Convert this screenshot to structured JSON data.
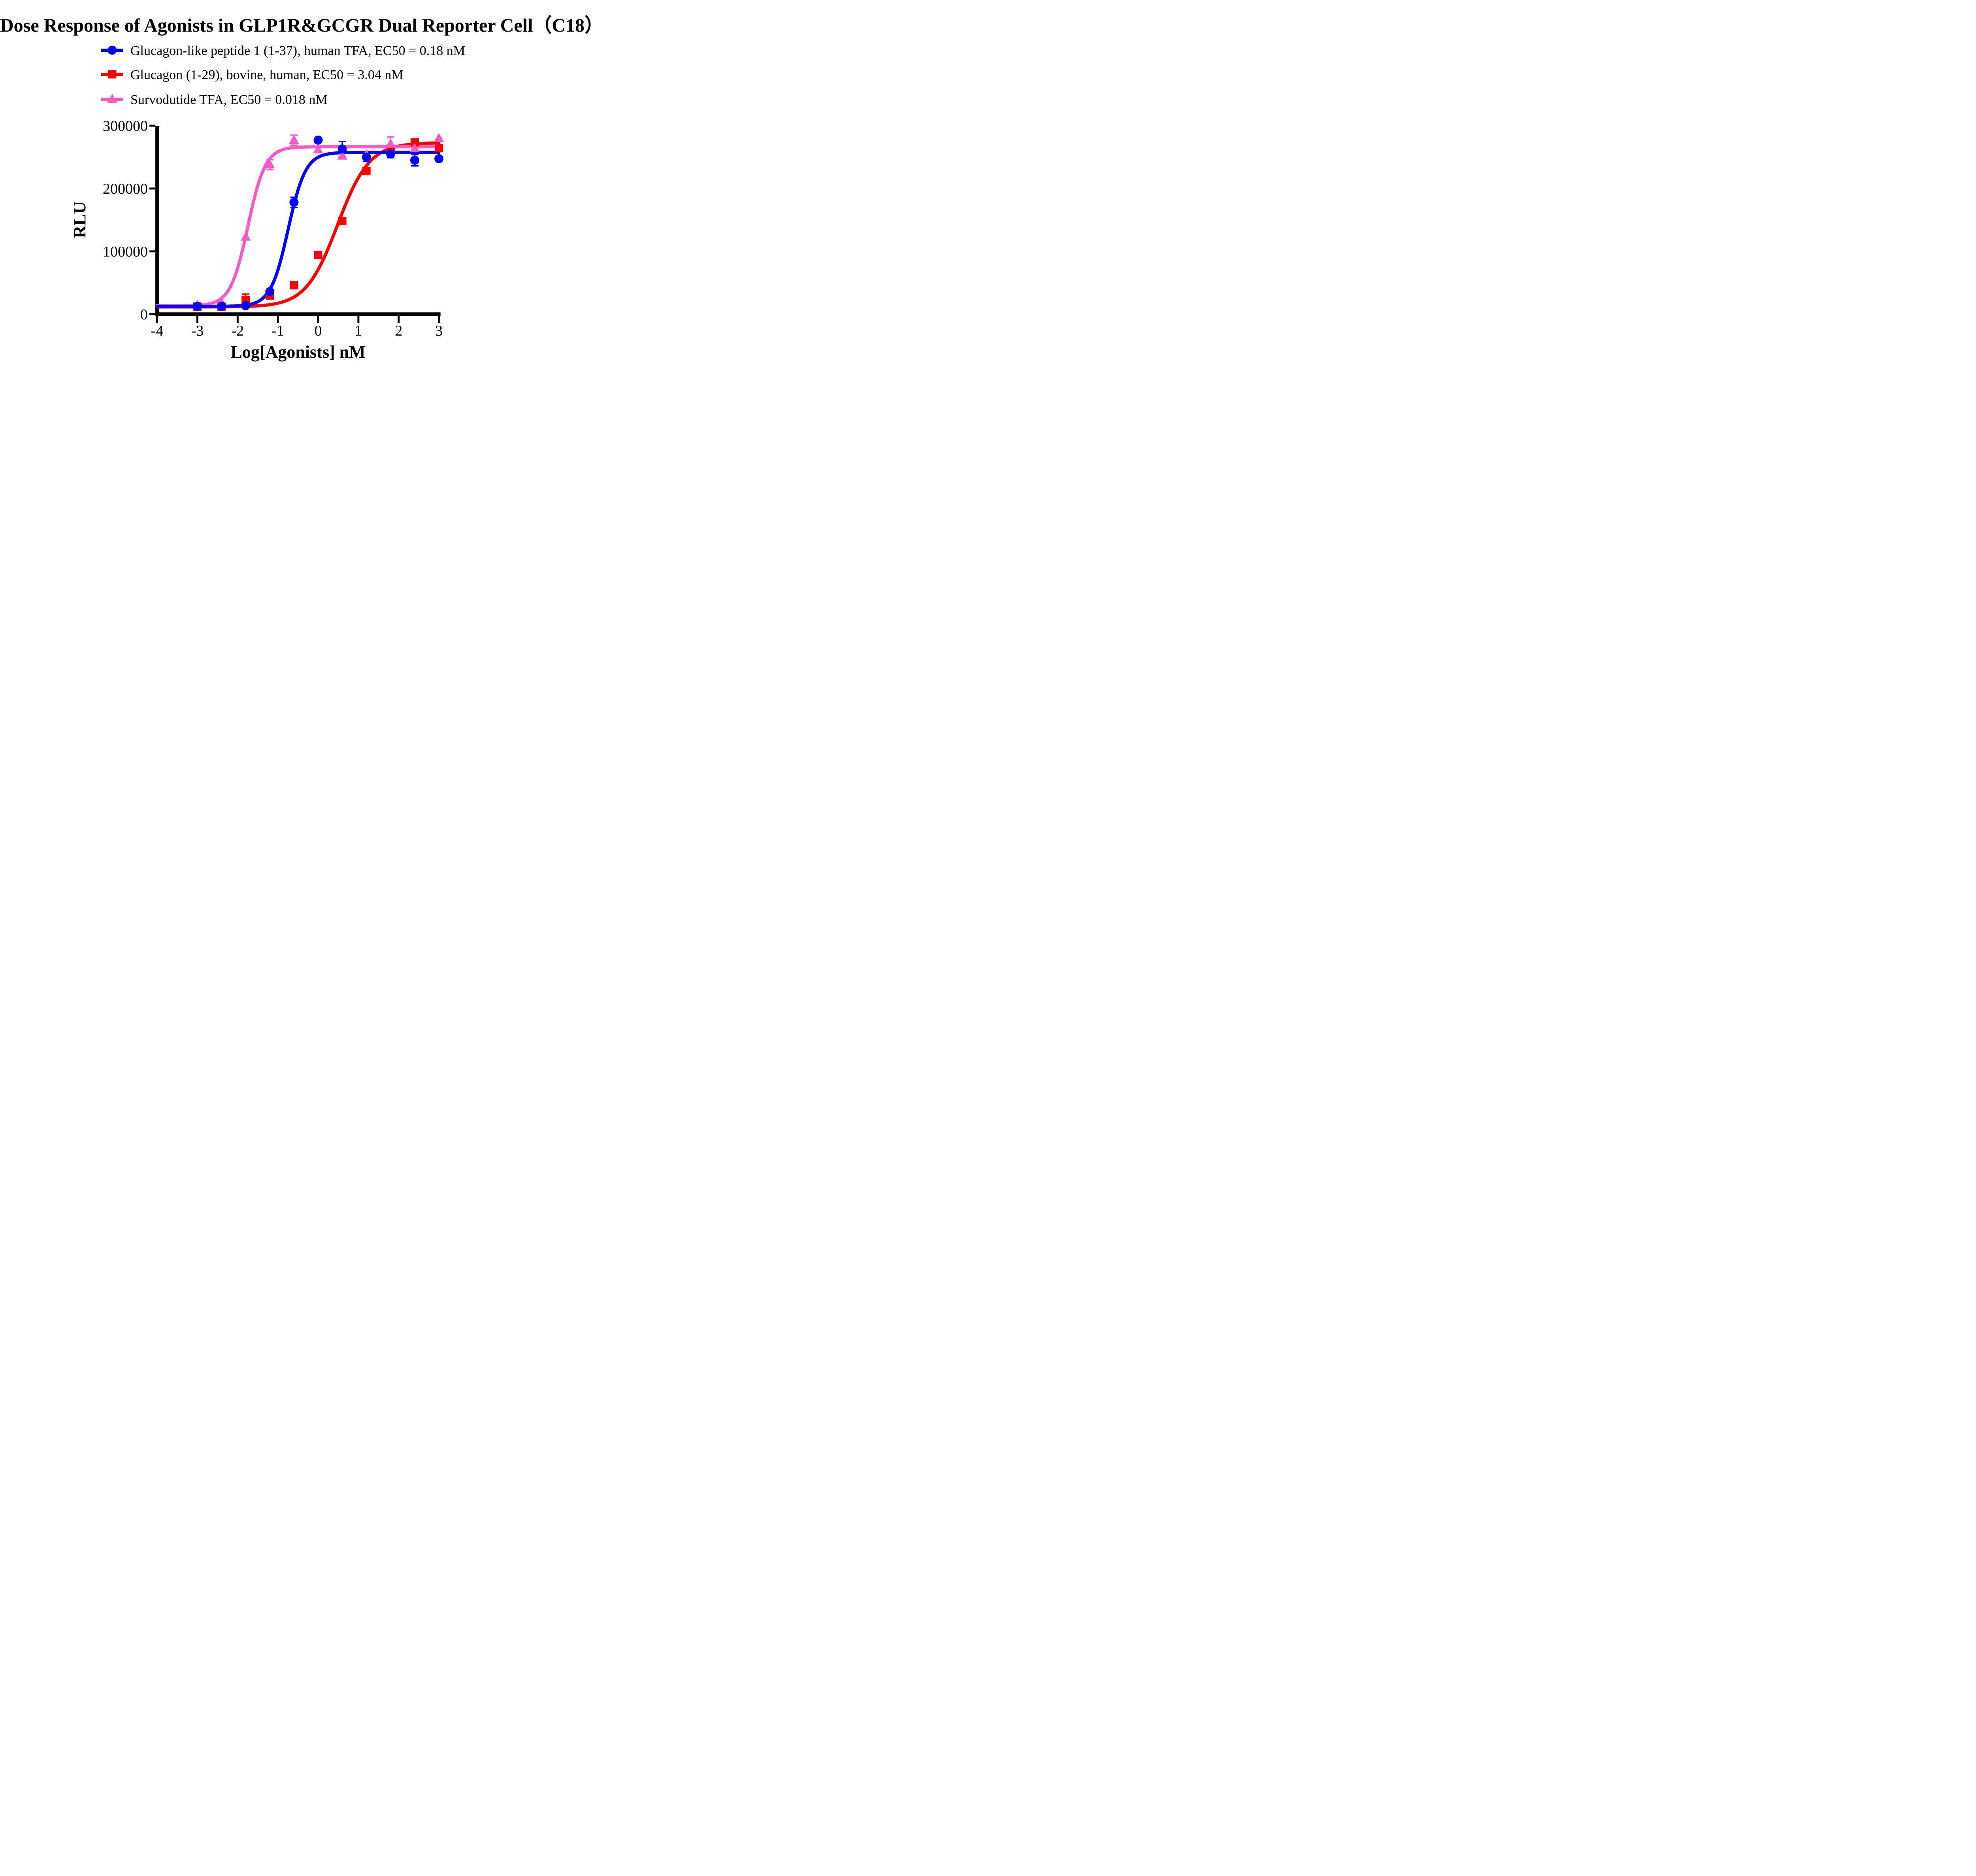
{
  "title": "Dose Response of Agonists in GLP1R&GCGR Dual Reporter Cell（C18）",
  "legend": [
    {
      "label": "Glucagon-like peptide 1 (1-37), human TFA, EC50 = 0.18 nM"
    },
    {
      "label": "Glucagon (1-29), bovine, human, EC50 = 3.04 nM"
    },
    {
      "label": "Survodutide TFA, EC50 = 0.018 nM"
    }
  ],
  "chart_data": {
    "type": "scatter",
    "title": "Dose Response of Agonists in GLP1R&GCGR Dual Reporter Cell（C18）",
    "xlabel": "Log[Agonists] nM",
    "ylabel": "RLU",
    "xlim": [
      -4,
      3
    ],
    "ylim": [
      0,
      300000
    ],
    "xticks": [
      -4,
      -3,
      -2,
      -1,
      0,
      1,
      2,
      3
    ],
    "xtick_labels": [
      "-4",
      "-3",
      "-2",
      "-1",
      "0",
      "1",
      "2",
      "3"
    ],
    "yticks": [
      0,
      100000,
      200000,
      300000
    ],
    "ytick_labels": [
      "0",
      "100000",
      "200000",
      "300000"
    ],
    "grid": false,
    "legend_position": "top-left",
    "series": [
      {
        "name": "Glucagon-like peptide 1 (1-37), human TFA",
        "ec50_label": "EC50 = 0.18 nM",
        "color": "#0000FE",
        "marker": "circle",
        "x": [
          -3,
          -2.4,
          -1.8,
          -1.2,
          -0.6,
          0,
          0.6,
          1.2,
          1.8,
          2.4,
          3
        ],
        "y": [
          12500,
          12500,
          13500,
          36000,
          178000,
          277000,
          263000,
          250000,
          255000,
          245000,
          247500
        ],
        "yerr": [
          0,
          0,
          0,
          0,
          8000,
          0,
          12000,
          7000,
          6000,
          9000,
          0
        ],
        "fit": {
          "model": "sigmoid",
          "bottom": 12500,
          "top": 257500,
          "logec50": -0.745,
          "hill": 2.0
        }
      },
      {
        "name": "Glucagon (1-29), bovine, human",
        "ec50_label": "EC50 = 3.04 nM",
        "color": "#FB0000",
        "marker": "square",
        "x": [
          -3,
          -2.4,
          -1.8,
          -1.2,
          -0.6,
          0,
          0.6,
          1.2,
          1.8,
          2.4,
          3
        ],
        "y": [
          12000,
          12000,
          22500,
          29500,
          46000,
          94000,
          148000,
          228000,
          263000,
          273500,
          264500
        ],
        "yerr": [
          5000,
          5000,
          9500,
          0,
          0,
          0,
          0,
          0,
          0,
          0,
          0
        ],
        "fit": {
          "model": "sigmoid",
          "bottom": 11500,
          "top": 273000,
          "logec50": 0.483,
          "hill": 1.1
        }
      },
      {
        "name": "Survodutide TFA",
        "ec50_label": "EC50 = 0.018 nM",
        "color": "#F45BC8",
        "marker": "triangle",
        "x": [
          -3,
          -2.4,
          -1.8,
          -1.2,
          -0.6,
          0,
          0.6,
          1.2,
          1.8,
          2.4,
          3
        ],
        "y": [
          14000,
          19000,
          123000,
          238000,
          277000,
          262000,
          252000,
          254000,
          271000,
          264000,
          280000
        ],
        "yerr": [
          0,
          0,
          0,
          8000,
          8000,
          0,
          0,
          0,
          11000,
          0,
          0
        ],
        "fit": {
          "model": "sigmoid",
          "bottom": 13500,
          "top": 266500,
          "logec50": -1.745,
          "hill": 2.0
        }
      }
    ]
  }
}
